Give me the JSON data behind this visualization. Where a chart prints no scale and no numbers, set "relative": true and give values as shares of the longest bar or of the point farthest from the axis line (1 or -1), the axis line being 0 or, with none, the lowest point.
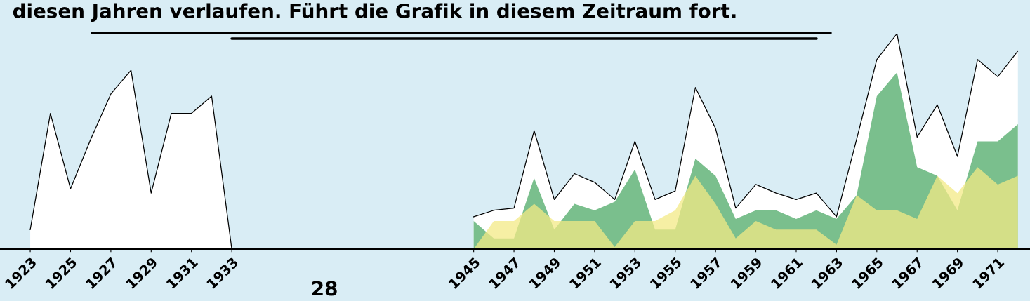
{
  "chart_data": {
    "type": "area",
    "title": "diesen Jahren verlaufen. Führt die Grafik in diesem Zeitraum fort.",
    "relative": true,
    "x": [
      1923,
      1924,
      1925,
      1926,
      1927,
      1928,
      1929,
      1930,
      1931,
      1932,
      1933,
      1934,
      1935,
      1936,
      1937,
      1938,
      1939,
      1940,
      1941,
      1942,
      1943,
      1944,
      1945,
      1946,
      1947,
      1948,
      1949,
      1950,
      1951,
      1952,
      1953,
      1954,
      1955,
      1956,
      1957,
      1958,
      1959,
      1960,
      1961,
      1962,
      1963,
      1964,
      1965,
      1966,
      1967,
      1968,
      1969,
      1970,
      1971,
      1972
    ],
    "xlim": [
      1921.5,
      1972.6
    ],
    "xticks": [
      1923,
      1925,
      1927,
      1929,
      1931,
      1933,
      1945,
      1947,
      1949,
      1951,
      1953,
      1955,
      1957,
      1959,
      1961,
      1963,
      1965,
      1967,
      1969,
      1971
    ],
    "series": [
      {
        "color": "#ffffff",
        "values": [
          0.09,
          0.63,
          0.28,
          0.51,
          0.72,
          0.83,
          0.26,
          0.63,
          0.63,
          0.71,
          0,
          null,
          null,
          null,
          null,
          null,
          null,
          null,
          null,
          null,
          null,
          null,
          0.15,
          0.18,
          0.19,
          0.55,
          0.23,
          0.35,
          0.31,
          0.23,
          0.5,
          0.23,
          0.27,
          0.75,
          0.56,
          0.19,
          0.3,
          0.26,
          0.23,
          0.26,
          0.15,
          0.51,
          0.88,
          1.0,
          0.52,
          0.67,
          0.43,
          0.88,
          0.8,
          0.92
        ]
      },
      {
        "color": "#7abf8d",
        "x": [
          1945,
          1946,
          1947,
          1948,
          1949,
          1950,
          1951,
          1952,
          1953,
          1954,
          1955,
          1956,
          1957,
          1958,
          1959,
          1960,
          1961,
          1962,
          1963,
          1964,
          1965,
          1966,
          1967,
          1968,
          1969,
          1970,
          1971,
          1972
        ],
        "values": [
          0.13,
          0.05,
          0.05,
          0.33,
          0.09,
          0.21,
          0.18,
          0.22,
          0.37,
          0.09,
          0.09,
          0.42,
          0.34,
          0.14,
          0.18,
          0.18,
          0.14,
          0.18,
          0.14,
          0.25,
          0.71,
          0.82,
          0.38,
          0.34,
          0.18,
          0.5,
          0.5,
          0.58
        ]
      },
      {
        "color": "#f3ea86",
        "x": [
          1945,
          1946,
          1947,
          1948,
          1949,
          1950,
          1951,
          1952,
          1953,
          1954,
          1955,
          1956,
          1957,
          1958,
          1959,
          1960,
          1961,
          1962,
          1963,
          1964,
          1965,
          1966,
          1967,
          1968,
          1969,
          1970,
          1971,
          1972
        ],
        "values": [
          0,
          0.13,
          0.13,
          0.21,
          0.13,
          0.13,
          0.13,
          0.01,
          0.13,
          0.13,
          0.18,
          0.34,
          0.21,
          0.05,
          0.13,
          0.09,
          0.09,
          0.09,
          0.02,
          0.25,
          0.18,
          0.18,
          0.14,
          0.34,
          0.26,
          0.38,
          0.3,
          0.34
        ]
      }
    ],
    "annotations": [
      "28"
    ],
    "grid": false,
    "legend": false
  }
}
